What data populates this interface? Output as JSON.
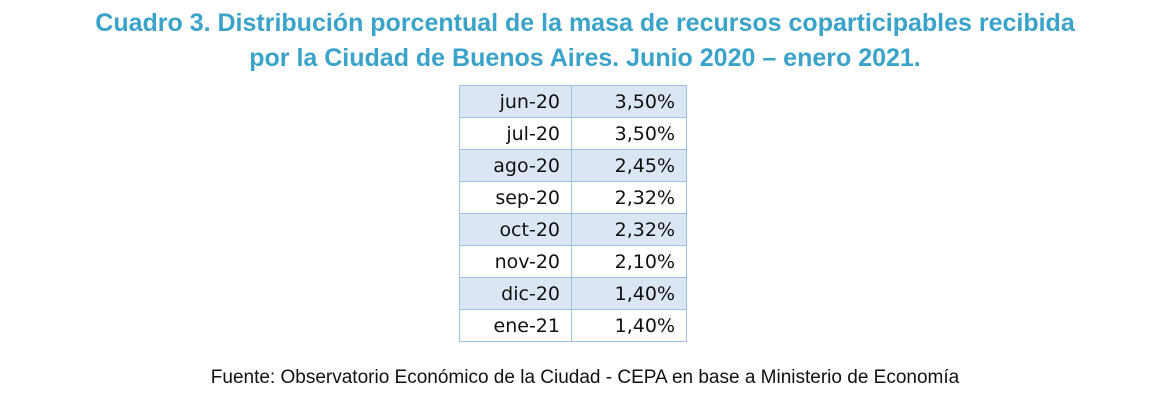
{
  "title_lines": [
    "Cuadro 3. Distribución porcentual de la masa de recursos coparticipables recibida",
    "por la Ciudad de Buenos Aires. Junio 2020 – enero 2021."
  ],
  "chart_data": {
    "type": "table",
    "title": "Cuadro 3. Distribución porcentual de la masa de recursos coparticipables recibida por la Ciudad de Buenos Aires. Junio 2020 – enero 2021.",
    "rows": [
      {
        "month": "jun-20",
        "value": "3,50%"
      },
      {
        "month": "jul-20",
        "value": "3,50%"
      },
      {
        "month": "ago-20",
        "value": "2,45%"
      },
      {
        "month": "sep-20",
        "value": "2,32%"
      },
      {
        "month": "oct-20",
        "value": "2,32%"
      },
      {
        "month": "nov-20",
        "value": "2,10%"
      },
      {
        "month": "dic-20",
        "value": "1,40%"
      },
      {
        "month": "ene-21",
        "value": "1,40%"
      }
    ]
  },
  "source": "Fuente: Observatorio Económico de la Ciudad - CEPA en base a Ministerio de Economía",
  "colors": {
    "title": "#3aa3c9",
    "row_shade": "#dae6f3",
    "border": "#9fc2e4"
  }
}
